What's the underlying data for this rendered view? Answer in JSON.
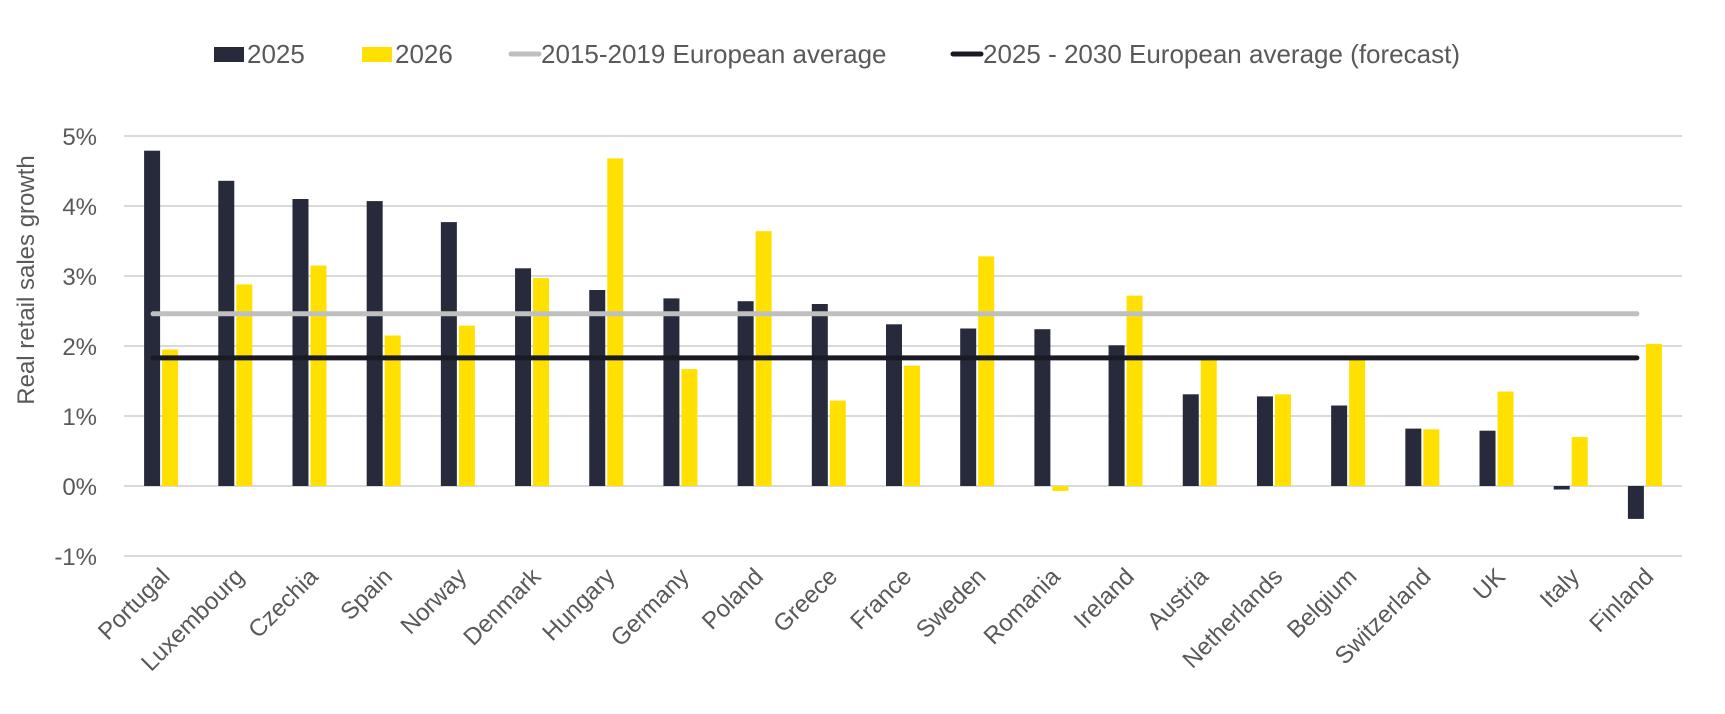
{
  "chart_data": {
    "type": "bar",
    "title": "",
    "xlabel": "",
    "ylabel": "Real retail sales growth",
    "ylim": [
      -1,
      5
    ],
    "yticks": [
      5,
      4,
      3,
      2,
      1,
      0,
      -1
    ],
    "ytick_labels": [
      "5%",
      "4%",
      "3%",
      "2%",
      "1%",
      "0%",
      "-1%"
    ],
    "grid": true,
    "legend_position": "top",
    "categories": [
      "Portugal",
      "Luxembourg",
      "Czechia",
      "Spain",
      "Norway",
      "Denmark",
      "Hungary",
      "Germany",
      "Poland",
      "Greece",
      "France",
      "Sweden",
      "Romania",
      "Ireland",
      "Austria",
      "Netherlands",
      "Belgium",
      "Switzerland",
      "UK",
      "Italy",
      "Finland"
    ],
    "series": [
      {
        "name": "2025",
        "kind": "bar",
        "color": "#262A3B",
        "values": [
          4.79,
          4.36,
          4.1,
          4.07,
          3.77,
          3.11,
          2.8,
          2.68,
          2.64,
          2.6,
          2.31,
          2.25,
          2.24,
          2.01,
          1.31,
          1.28,
          1.15,
          0.82,
          0.79,
          -0.05,
          -0.47
        ]
      },
      {
        "name": "2026",
        "kind": "bar",
        "color": "#FFE000",
        "values": [
          1.95,
          2.88,
          3.15,
          2.15,
          2.29,
          2.97,
          4.68,
          1.67,
          3.64,
          1.22,
          1.72,
          3.28,
          -0.07,
          2.72,
          1.83,
          1.31,
          1.84,
          0.81,
          1.35,
          0.7,
          2.03
        ]
      }
    ],
    "reference_lines": [
      {
        "name": "2015-2019 European average",
        "value": 2.46,
        "color": "#BFBFBF"
      },
      {
        "name": "2025 - 2030 European average (forecast)",
        "value": 1.83,
        "color": "#1A1A24"
      }
    ],
    "legend": [
      {
        "label": "2025",
        "swatch": "box",
        "color": "#262A3B"
      },
      {
        "label": "2026",
        "swatch": "box",
        "color": "#FFE000"
      },
      {
        "label": "2015-2019 European average",
        "swatch": "line",
        "color": "#BFBFBF"
      },
      {
        "label": "2025 - 2030 European average (forecast)",
        "swatch": "line",
        "color": "#1A1A24"
      }
    ]
  }
}
